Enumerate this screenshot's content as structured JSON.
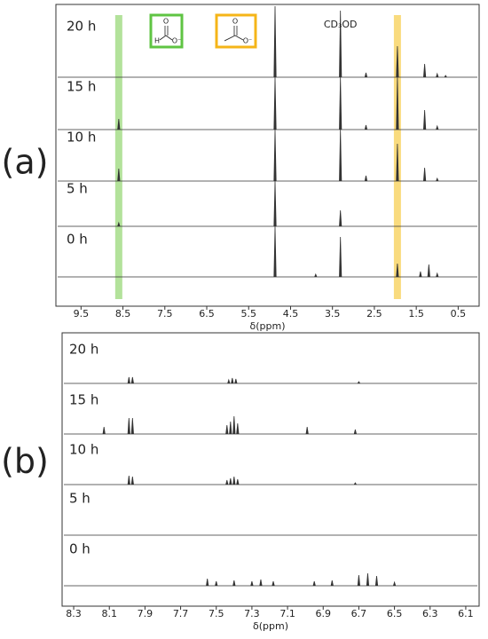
{
  "chart_data": [
    {
      "type": "spectra",
      "panel_label": "(a)",
      "x_label": "δ(ppm)",
      "xlim": [
        10.1,
        0
      ],
      "xticks": [
        9.5,
        8.5,
        7.5,
        6.5,
        5.5,
        4.5,
        3.5,
        2.5,
        1.5,
        0.5
      ],
      "highlights": [
        {
          "x": 8.6,
          "color": "#a6dd8a"
        },
        {
          "x": 1.95,
          "color": "#f8d567"
        }
      ],
      "annotation": {
        "text": "CD₃OD",
        "x": 3.31
      },
      "structures": [
        {
          "color": "#5fc443",
          "atoms": [
            "O",
            "H",
            "O⁻"
          ]
        },
        {
          "color": "#f5b518",
          "atoms": [
            "O",
            "O⁻"
          ]
        }
      ],
      "series": [
        {
          "name": "20 h",
          "color": "#333333",
          "x": [
            4.87,
            3.31,
            2.7,
            1.95,
            1.3,
            1.0,
            0.8
          ],
          "values": [
            80,
            75,
            5,
            35,
            15,
            4,
            2
          ]
        },
        {
          "name": "15 h",
          "color": "#333333",
          "x": [
            8.6,
            4.87,
            3.31,
            2.7,
            1.95,
            1.3,
            1.0
          ],
          "values": [
            12,
            59,
            59,
            5,
            59,
            22,
            4
          ]
        },
        {
          "name": "10 h",
          "color": "#333333",
          "x": [
            8.6,
            4.87,
            3.31,
            2.7,
            1.95,
            1.3,
            1.0
          ],
          "values": [
            14,
            58,
            58,
            6,
            42,
            15,
            3
          ]
        },
        {
          "name": "5 h",
          "color": "#333333",
          "x": [
            8.6,
            4.87,
            3.31
          ],
          "values": [
            4,
            51,
            18
          ]
        },
        {
          "name": "0 h",
          "color": "#333333",
          "x": [
            4.87,
            3.9,
            3.31,
            1.95,
            1.4,
            1.2,
            1.0
          ],
          "values": [
            57,
            3,
            45,
            15,
            6,
            14,
            4
          ]
        }
      ]
    },
    {
      "type": "spectra",
      "panel_label": "(b)",
      "x_label": "δ(ppm)",
      "xlim": [
        8.365,
        6.025
      ],
      "xticks": [
        8.3,
        8.1,
        7.9,
        7.7,
        7.5,
        7.3,
        7.1,
        6.9,
        6.7,
        6.5,
        6.3,
        6.1
      ],
      "series": [
        {
          "name": "20 h",
          "color": "#333333",
          "x": [
            7.99,
            7.97,
            7.43,
            7.41,
            7.39,
            6.7
          ],
          "values": [
            7,
            7,
            4,
            6,
            5,
            2
          ]
        },
        {
          "name": "15 h",
          "color": "#333333",
          "x": [
            8.13,
            7.99,
            7.97,
            7.44,
            7.42,
            7.4,
            7.38,
            6.99,
            6.72
          ],
          "values": [
            8,
            18,
            18,
            10,
            14,
            20,
            12,
            8,
            5
          ]
        },
        {
          "name": "10 h",
          "color": "#333333",
          "x": [
            7.99,
            7.97,
            7.44,
            7.42,
            7.4,
            7.38,
            6.72
          ],
          "values": [
            10,
            9,
            5,
            7,
            9,
            6,
            2
          ]
        },
        {
          "name": "5 h",
          "color": "#333333",
          "x": [],
          "values": []
        },
        {
          "name": "0 h",
          "color": "#333333",
          "x": [
            7.55,
            7.5,
            7.4,
            7.3,
            7.25,
            7.18,
            6.95,
            6.85,
            6.7,
            6.65,
            6.6,
            6.5
          ],
          "values": [
            8,
            5,
            6,
            5,
            7,
            5,
            5,
            6,
            12,
            14,
            11,
            4
          ]
        }
      ]
    }
  ]
}
